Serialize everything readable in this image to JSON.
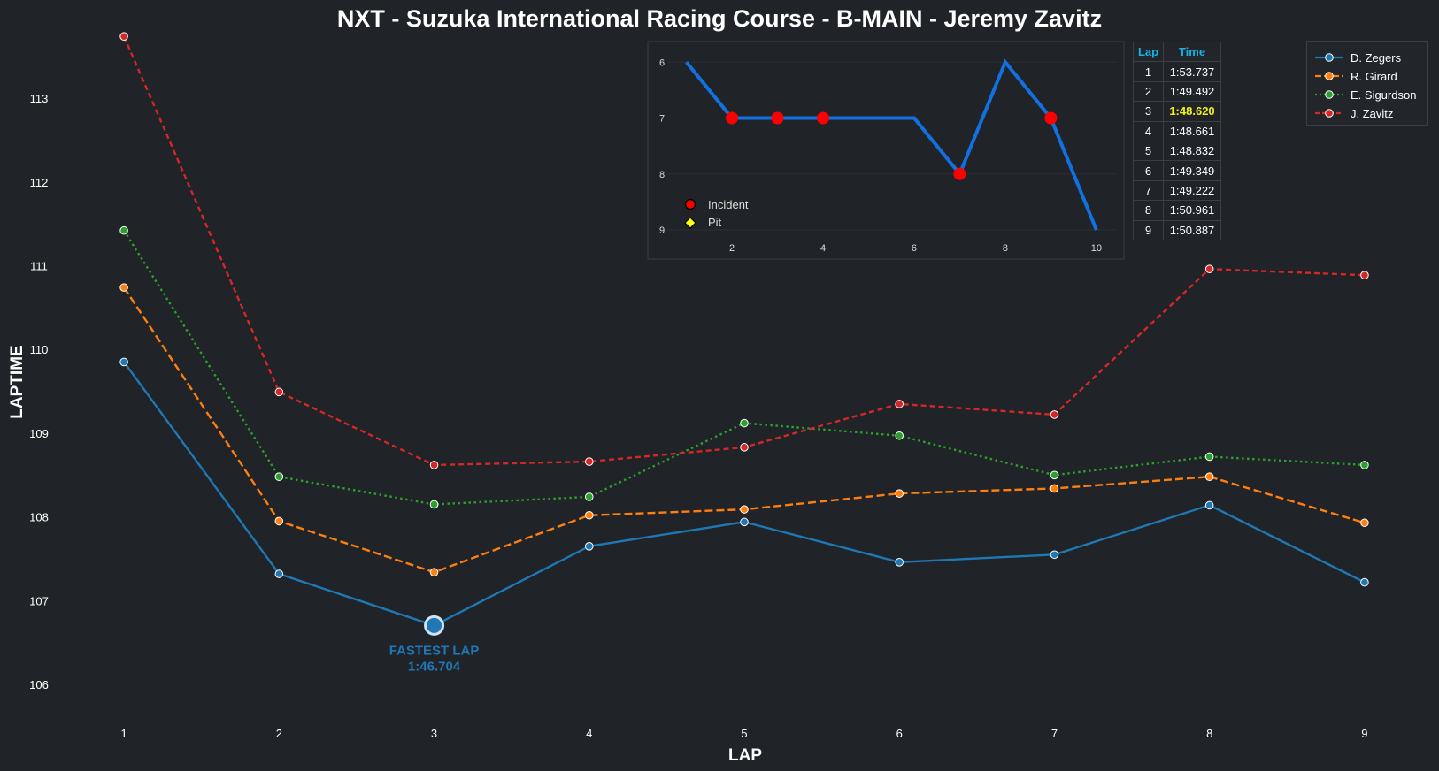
{
  "chart_data": [
    {
      "type": "line",
      "title": "NXT - Suzuka International Racing Course - B-MAIN - Jeremy Zavitz",
      "xlabel": "LAP",
      "ylabel": "LAPTIME",
      "x": [
        1,
        2,
        3,
        4,
        5,
        6,
        7,
        8,
        9
      ],
      "xlim": [
        0.6,
        9.4
      ],
      "ylim": [
        105.6,
        113.75
      ],
      "yticks": [
        106,
        107,
        108,
        109,
        110,
        111,
        112,
        113
      ],
      "grid": false,
      "legend_position": "top-right",
      "series": [
        {
          "name": "D. Zegers",
          "color": "#1f77b4",
          "dash": "solid",
          "values": [
            109.85,
            107.32,
            106.704,
            107.65,
            107.94,
            107.46,
            107.55,
            108.14,
            107.22
          ]
        },
        {
          "name": "R. Girard",
          "color": "#ff7f0e",
          "dash": "dashed",
          "values": [
            110.74,
            107.95,
            107.34,
            108.02,
            108.09,
            108.28,
            108.34,
            108.48,
            107.93
          ]
        },
        {
          "name": "E. Sigurdson",
          "color": "#2ca02c",
          "dash": "dotted",
          "values": [
            111.42,
            108.48,
            108.15,
            108.24,
            109.12,
            108.97,
            108.5,
            108.72,
            108.62
          ]
        },
        {
          "name": "J. Zavitz",
          "color": "#d62728",
          "dash": "dashed",
          "values": [
            113.737,
            109.492,
            108.62,
            108.661,
            108.832,
            109.349,
            109.222,
            110.961,
            110.887
          ]
        }
      ],
      "annotation": {
        "x": 3,
        "y": 106.704,
        "label": "FASTEST LAP",
        "value": "1:46.704"
      }
    },
    {
      "type": "line",
      "series": [
        {
          "name": "Position",
          "color": "#1370e0",
          "x": [
            1,
            2,
            3,
            4,
            5,
            6,
            7,
            8,
            9,
            10
          ],
          "values": [
            6,
            7,
            7,
            7,
            7,
            7,
            8,
            6,
            7,
            9
          ]
        }
      ],
      "incidents": [
        {
          "x": 2,
          "y": 7
        },
        {
          "x": 3,
          "y": 7
        },
        {
          "x": 4,
          "y": 7
        },
        {
          "x": 7,
          "y": 8
        },
        {
          "x": 9,
          "y": 7
        }
      ],
      "xticks": [
        2,
        4,
        6,
        8,
        10
      ],
      "yticks": [
        6,
        7,
        8,
        9
      ],
      "xlim": [
        0.6,
        10.45
      ],
      "ylim": [
        5.98,
        9.0
      ],
      "y_inverted": true,
      "legend": [
        {
          "label": "Incident",
          "color": "#ff0000",
          "marker": "circle"
        },
        {
          "label": "Pit",
          "color": "#ffff00",
          "marker": "diamond"
        }
      ],
      "legend_position": "lower-left"
    }
  ],
  "lap_table": {
    "headers": {
      "lap": "Lap",
      "time": "Time"
    },
    "highlight_color": "#f2f21a",
    "rows": [
      {
        "lap": "1",
        "time": "1:53.737"
      },
      {
        "lap": "2",
        "time": "1:49.492"
      },
      {
        "lap": "3",
        "time": "1:48.620",
        "best": true
      },
      {
        "lap": "4",
        "time": "1:48.661"
      },
      {
        "lap": "5",
        "time": "1:48.832"
      },
      {
        "lap": "6",
        "time": "1:49.349"
      },
      {
        "lap": "7",
        "time": "1:49.222"
      },
      {
        "lap": "8",
        "time": "1:50.961"
      },
      {
        "lap": "9",
        "time": "1:50.887"
      }
    ]
  }
}
